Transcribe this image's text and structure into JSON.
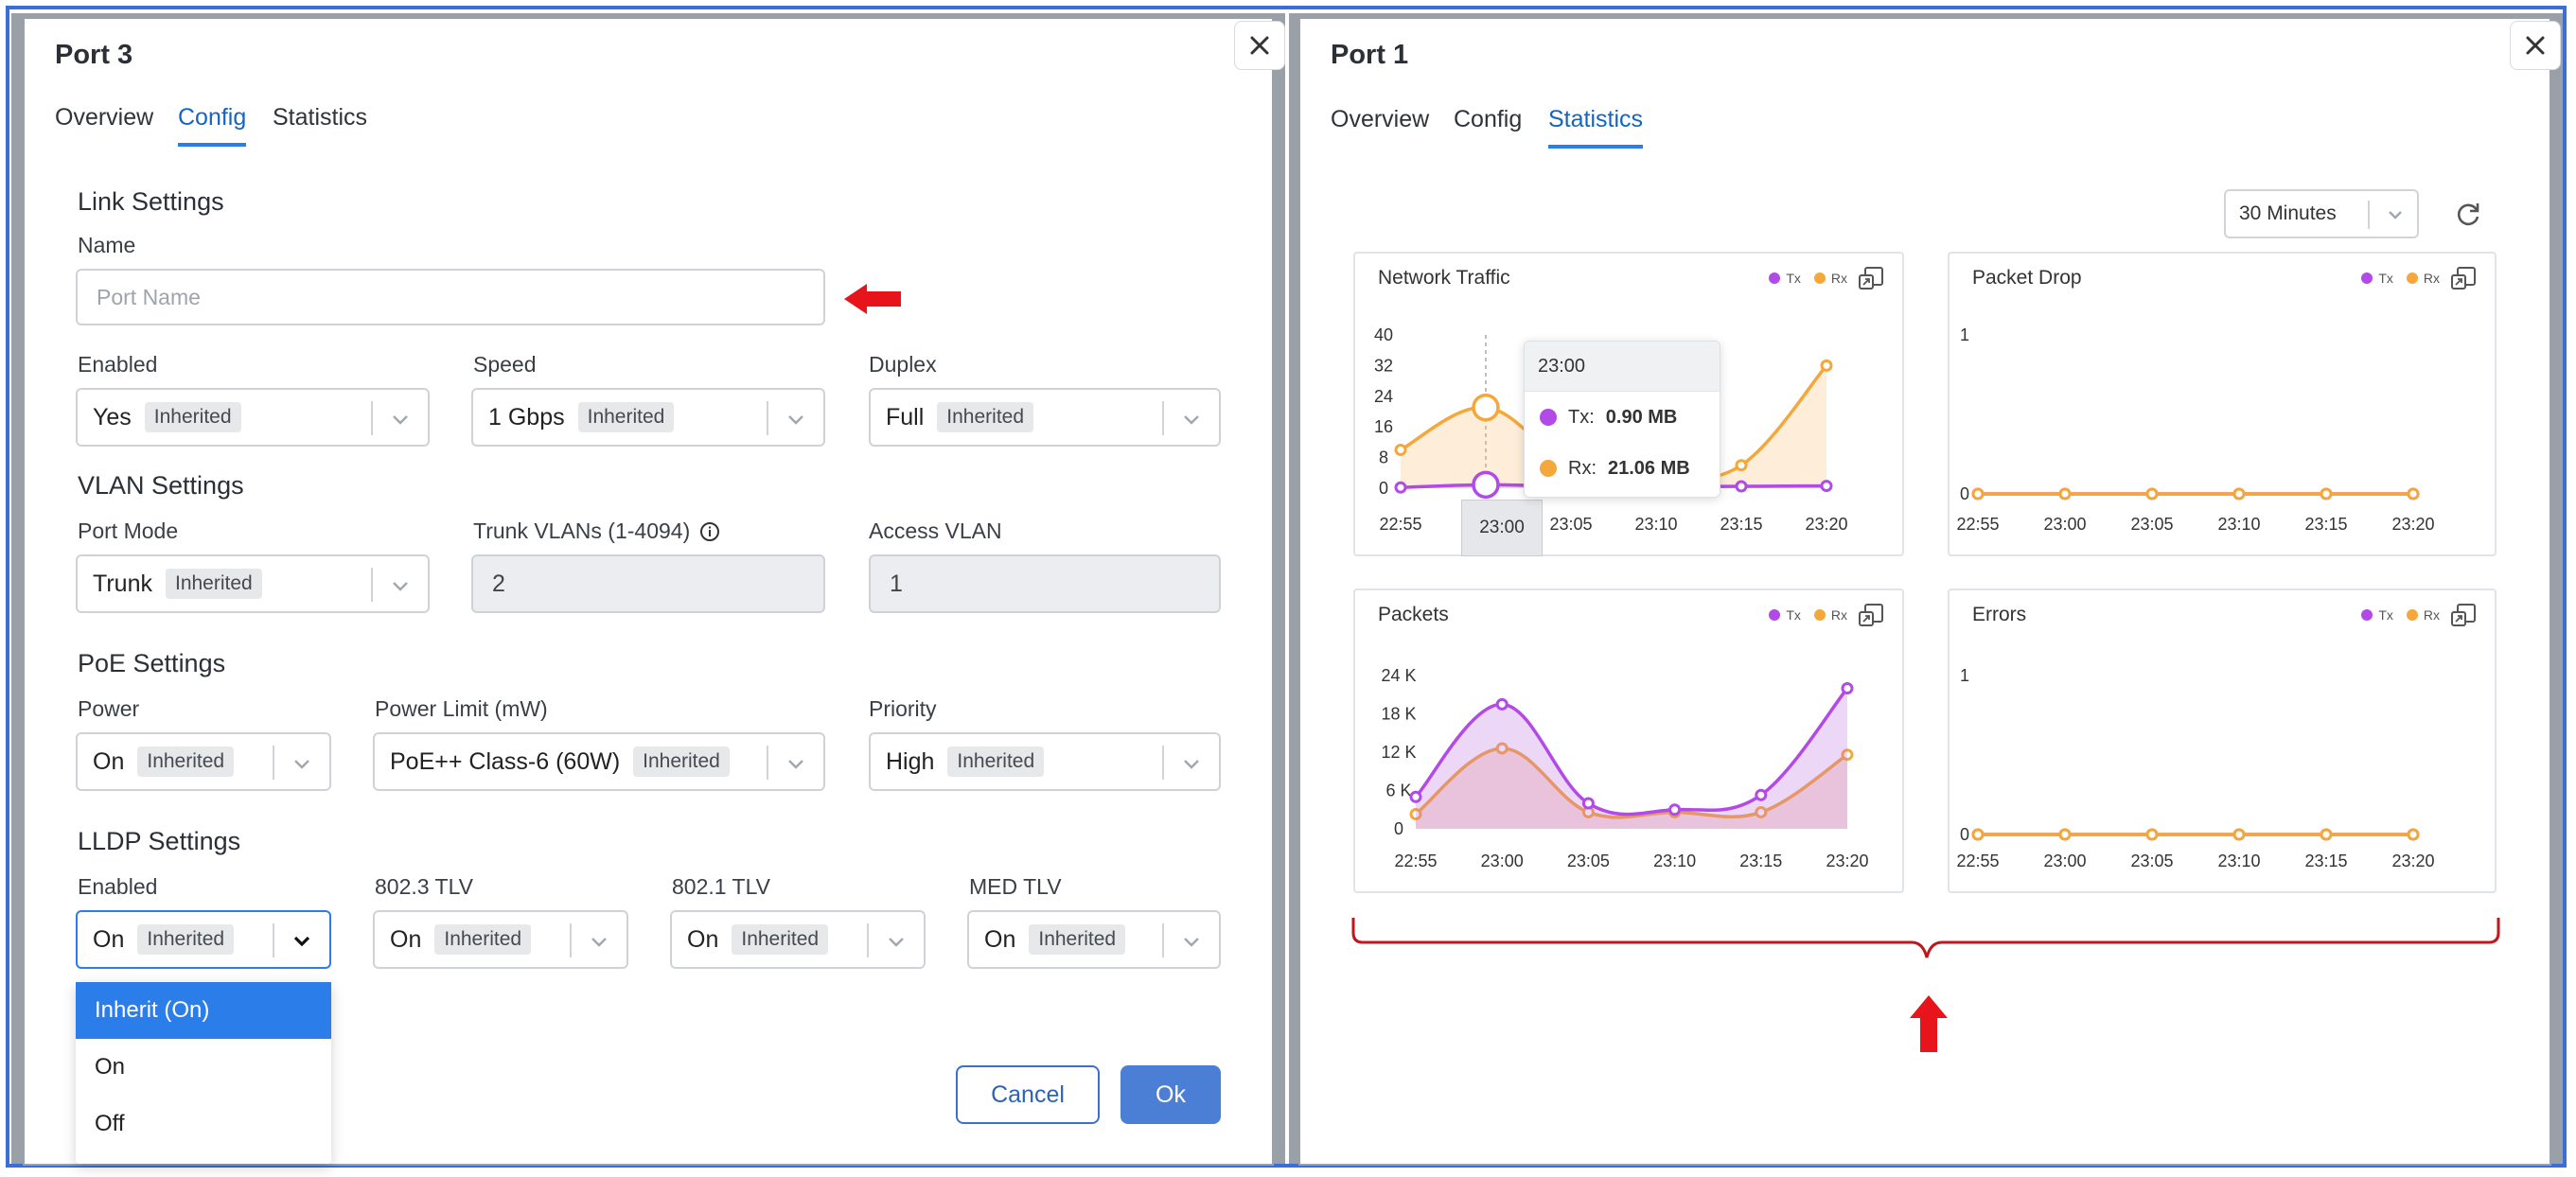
{
  "colors": {
    "tx": "#b14ae6",
    "rx": "#f4a73a",
    "accent": "#2b7de9",
    "annotation": "#e8141b"
  },
  "left": {
    "title": "Port 3",
    "tabs": [
      {
        "label": "Overview"
      },
      {
        "label": "Config"
      },
      {
        "label": "Statistics"
      }
    ],
    "active_tab": "Config",
    "link_settings": {
      "heading": "Link Settings",
      "name_label": "Name",
      "name_placeholder": "Port Name",
      "enabled": {
        "label": "Enabled",
        "value": "Yes",
        "badge": "Inherited"
      },
      "speed": {
        "label": "Speed",
        "value": "1 Gbps",
        "badge": "Inherited"
      },
      "duplex": {
        "label": "Duplex",
        "value": "Full",
        "badge": "Inherited"
      }
    },
    "vlan_settings": {
      "heading": "VLAN Settings",
      "port_mode": {
        "label": "Port Mode",
        "value": "Trunk",
        "badge": "Inherited"
      },
      "trunk_vlans": {
        "label": "Trunk VLANs (1-4094)",
        "value": "2"
      },
      "access_vlan": {
        "label": "Access VLAN",
        "value": "1"
      }
    },
    "poe_settings": {
      "heading": "PoE Settings",
      "power": {
        "label": "Power",
        "value": "On",
        "badge": "Inherited"
      },
      "power_limit": {
        "label": "Power Limit (mW)",
        "value": "PoE++ Class-6 (60W)",
        "badge": "Inherited"
      },
      "priority": {
        "label": "Priority",
        "value": "High",
        "badge": "Inherited"
      }
    },
    "lldp_settings": {
      "heading": "LLDP Settings",
      "enabled": {
        "label": "Enabled",
        "value": "On",
        "badge": "Inherited"
      },
      "tlv_8023": {
        "label": "802.3 TLV",
        "value": "On",
        "badge": "Inherited"
      },
      "tlv_8021": {
        "label": "802.1 TLV",
        "value": "On",
        "badge": "Inherited"
      },
      "med_tlv": {
        "label": "MED TLV",
        "value": "On",
        "badge": "Inherited"
      }
    },
    "dropdown_options": [
      {
        "label": "Inherit (On)"
      },
      {
        "label": "On"
      },
      {
        "label": "Off"
      }
    ],
    "dropdown_selected": "Inherit (On)",
    "cancel_label": "Cancel",
    "ok_label": "Ok"
  },
  "right": {
    "title": "Port 1",
    "tabs": [
      {
        "label": "Overview"
      },
      {
        "label": "Config"
      },
      {
        "label": "Statistics"
      }
    ],
    "active_tab": "Statistics",
    "time_range": "30 Minutes",
    "legend": {
      "tx": "Tx",
      "rx": "Rx"
    },
    "tooltip": {
      "time": "23:00",
      "tx_label": "Tx:",
      "tx_value": "0.90 MB",
      "rx_label": "Rx:",
      "rx_value": "21.06 MB"
    },
    "cards": [
      {
        "title": "Network Traffic"
      },
      {
        "title": "Packet Drop"
      },
      {
        "title": "Packets"
      },
      {
        "title": "Errors"
      }
    ]
  },
  "chart_data": [
    {
      "type": "area",
      "title": "Network Traffic",
      "x": [
        "22:55",
        "23:00",
        "23:05",
        "23:10",
        "23:15",
        "23:20"
      ],
      "yticks": [
        "40",
        "32",
        "24",
        "16",
        "8",
        "0"
      ],
      "ylim": [
        0,
        40
      ],
      "series": [
        {
          "name": "Tx",
          "values": [
            0.2,
            0.9,
            0.5,
            0.4,
            0.5,
            0.6
          ]
        },
        {
          "name": "Rx",
          "values": [
            10,
            21.06,
            6,
            3,
            6,
            32
          ]
        }
      ]
    },
    {
      "type": "line",
      "title": "Packet Drop",
      "x": [
        "22:55",
        "23:00",
        "23:05",
        "23:10",
        "23:15",
        "23:20"
      ],
      "yticks": [
        "1",
        "0"
      ],
      "ylim": [
        0,
        1
      ],
      "series": [
        {
          "name": "Tx",
          "values": [
            0,
            0,
            0,
            0,
            0,
            0
          ]
        },
        {
          "name": "Rx",
          "values": [
            0,
            0,
            0,
            0,
            0,
            0
          ]
        }
      ]
    },
    {
      "type": "area",
      "title": "Packets",
      "x": [
        "22:55",
        "23:00",
        "23:05",
        "23:10",
        "23:15",
        "23:20"
      ],
      "yticks": [
        "24 K",
        "18 K",
        "12 K",
        "6 K",
        "0"
      ],
      "ylim": [
        0,
        24000
      ],
      "series": [
        {
          "name": "Tx",
          "values": [
            5000,
            19500,
            4000,
            3000,
            5300,
            22000
          ]
        },
        {
          "name": "Rx",
          "values": [
            2300,
            12600,
            2600,
            2600,
            2600,
            11600
          ]
        }
      ]
    },
    {
      "type": "line",
      "title": "Errors",
      "x": [
        "22:55",
        "23:00",
        "23:05",
        "23:10",
        "23:15",
        "23:20"
      ],
      "yticks": [
        "1",
        "0"
      ],
      "ylim": [
        0,
        1
      ],
      "series": [
        {
          "name": "Tx",
          "values": [
            0,
            0,
            0,
            0,
            0,
            0
          ]
        },
        {
          "name": "Rx",
          "values": [
            0,
            0,
            0,
            0,
            0,
            0
          ]
        }
      ]
    }
  ]
}
